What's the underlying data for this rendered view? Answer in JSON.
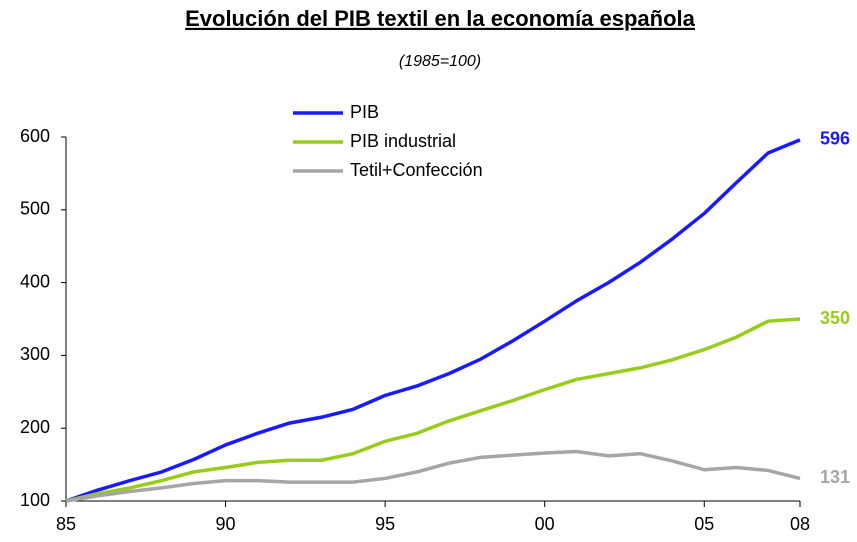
{
  "chart_data": {
    "type": "line",
    "title": "Evolución del PIB textil en la economía española",
    "subtitle": "(1985=100)",
    "x": [
      1985,
      1986,
      1987,
      1988,
      1989,
      1990,
      1991,
      1992,
      1993,
      1994,
      1995,
      1996,
      1997,
      1998,
      1999,
      2000,
      2001,
      2002,
      2003,
      2004,
      2005,
      2006,
      2007,
      2008
    ],
    "series": [
      {
        "name": "PIB",
        "color": "#1a1aff",
        "values": [
          100,
          115,
          128,
          140,
          157,
          177,
          193,
          207,
          215,
          226,
          245,
          258,
          275,
          295,
          320,
          347,
          375,
          400,
          428,
          460,
          495,
          537,
          578,
          596
        ]
      },
      {
        "name": "PIB industrial",
        "color": "#99cc1a",
        "values": [
          100,
          110,
          118,
          128,
          140,
          146,
          153,
          156,
          156,
          165,
          182,
          193,
          210,
          224,
          238,
          253,
          267,
          275,
          283,
          294,
          308,
          325,
          347,
          350
        ]
      },
      {
        "name": "Tetil+Confección",
        "color": "#a6a6a6",
        "values": [
          100,
          107,
          113,
          118,
          124,
          128,
          128,
          126,
          126,
          126,
          131,
          140,
          152,
          160,
          163,
          166,
          168,
          162,
          165,
          155,
          143,
          146,
          142,
          131
        ]
      }
    ],
    "xlim": [
      1985,
      2008
    ],
    "xticks": [
      {
        "value": 1985,
        "label": "85"
      },
      {
        "value": 1990,
        "label": "90"
      },
      {
        "value": 1995,
        "label": "95"
      },
      {
        "value": 2000,
        "label": "00"
      },
      {
        "value": 2005,
        "label": "05"
      },
      {
        "value": 2008,
        "label": "08"
      }
    ],
    "ylim": [
      100,
      600
    ],
    "yticks": [
      100,
      200,
      300,
      400,
      500,
      600
    ],
    "grid": false,
    "legend": "top"
  }
}
